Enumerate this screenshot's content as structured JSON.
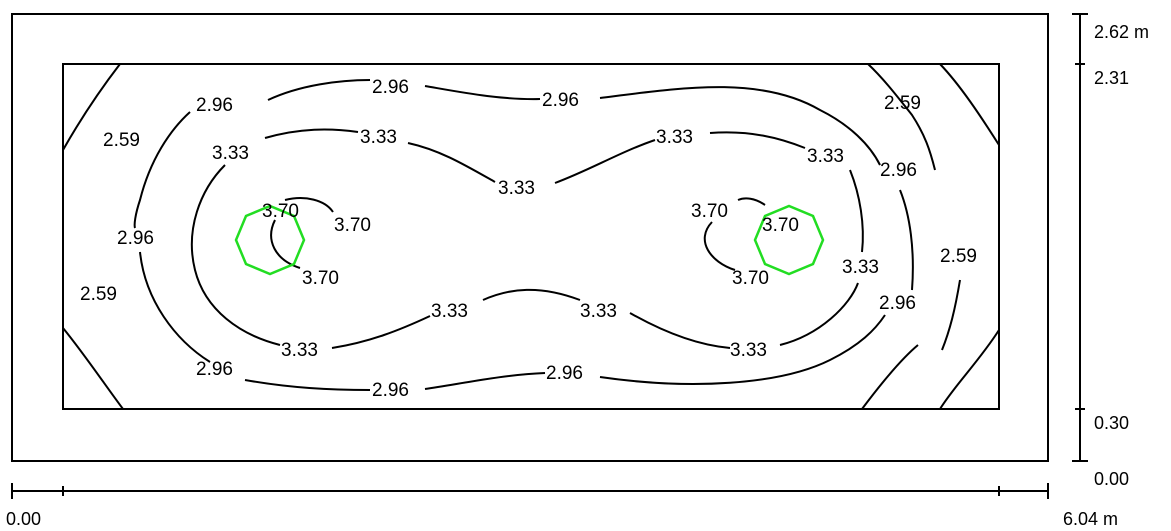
{
  "dimensions": {
    "x_start": "0.00",
    "x_end": "6.04 m",
    "y_bottom": "0.00",
    "y_inner_bottom": "0.30",
    "y_inner_top": "2.31",
    "y_top": "2.62 m"
  },
  "isoline_labels": {
    "v259": "2.59",
    "v296": "2.96",
    "v333": "3.33",
    "v370": "3.70"
  },
  "luminaires": {
    "count": 2,
    "color": "#22dd22"
  },
  "colors": {
    "lines": "#000000",
    "background": "#ffffff",
    "luminaire": "#22dd22"
  }
}
